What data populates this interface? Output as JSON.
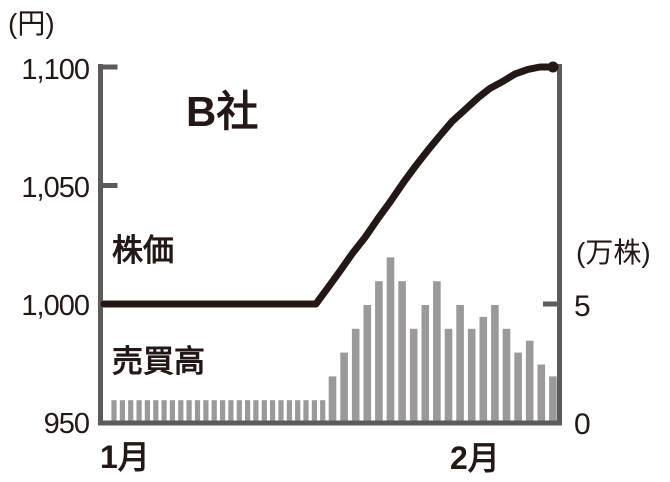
{
  "chart_data": {
    "type": "combo-line-bar",
    "title": "B社",
    "left_axis": {
      "unit_label": "(円)",
      "tick_labels": [
        "1,100",
        "1,050",
        "1,000",
        "950"
      ],
      "tick_values": [
        1100,
        1050,
        1000,
        950
      ],
      "range": [
        950,
        1100
      ]
    },
    "right_axis": {
      "unit_label": "(万株)",
      "tick_labels": [
        "5",
        "0"
      ],
      "tick_values": [
        5,
        0
      ],
      "range": [
        0,
        7
      ]
    },
    "x_axis": {
      "tick_labels": [
        "1月",
        "2月"
      ]
    },
    "legend": "none (labels placed inside plot)",
    "grid": false,
    "price_series": {
      "name": "株価",
      "unit": "円",
      "axis": "left",
      "points_day_fraction_price": [
        [
          0,
          1000
        ],
        [
          0.472,
          1000
        ],
        [
          0.499,
          1007
        ],
        [
          0.526,
          1014
        ],
        [
          0.552,
          1021
        ],
        [
          0.581,
          1028
        ],
        [
          0.61,
          1036
        ],
        [
          0.637,
          1043
        ],
        [
          0.666,
          1051
        ],
        [
          0.693,
          1058
        ],
        [
          0.722,
          1065
        ],
        [
          0.748,
          1071
        ],
        [
          0.775,
          1077
        ],
        [
          0.804,
          1082
        ],
        [
          0.833,
          1087
        ],
        [
          0.86,
          1091
        ],
        [
          0.889,
          1094
        ],
        [
          0.915,
          1097
        ],
        [
          0.944,
          1099
        ],
        [
          0.971,
          1100
        ],
        [
          1,
          1100
        ]
      ]
    },
    "volume_series": {
      "name": "売買高",
      "unit": "万株",
      "axis": "right",
      "segments": [
        {
          "values": [
            1,
            1,
            1,
            1,
            1,
            1,
            1,
            1,
            1,
            1,
            1,
            1,
            1,
            1,
            1,
            1,
            1,
            1,
            1,
            1,
            1,
            1,
            1,
            1,
            1,
            1
          ]
        },
        {
          "values": [
            2,
            3,
            4,
            5,
            6,
            7,
            6,
            4,
            5,
            6,
            4,
            5,
            4,
            4.5,
            5,
            4,
            3,
            3.5,
            2.5,
            2
          ]
        }
      ]
    },
    "colors": {
      "price_line": "#231815",
      "volume_bars": "#9b9999",
      "axis": "#5d5a5a",
      "text": "#231815",
      "background": "#ffffff"
    }
  }
}
